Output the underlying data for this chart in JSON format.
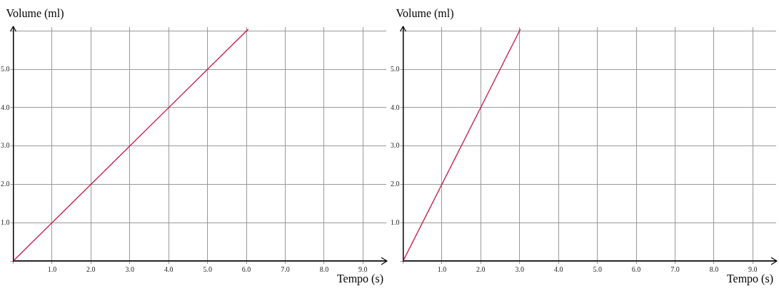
{
  "chart_data": [
    {
      "type": "line",
      "xlabel": "Tempo (s)",
      "ylabel": "Volume (ml)",
      "x": [
        0,
        6.05
      ],
      "series": [
        {
          "color": "#cc1144",
          "values": [
            0,
            6.05
          ]
        }
      ],
      "xlim": [
        0,
        9.6
      ],
      "ylim": [
        0,
        6.1
      ],
      "xticks": [
        {
          "value": 0,
          "label": null
        },
        {
          "value": 1,
          "label": "1.0"
        },
        {
          "value": 2,
          "label": "2.0"
        },
        {
          "value": 3,
          "label": "3.0"
        },
        {
          "value": 4,
          "label": "4.0"
        },
        {
          "value": 5,
          "label": "5.0"
        },
        {
          "value": 6,
          "label": "6.0"
        },
        {
          "value": 7,
          "label": "7.0"
        },
        {
          "value": 8,
          "label": "8.0"
        },
        {
          "value": 9,
          "label": "9.0"
        }
      ],
      "yticks": [
        {
          "value": 0,
          "label": null
        },
        {
          "value": 1,
          "label": "1.0"
        },
        {
          "value": 2,
          "label": "2.0"
        },
        {
          "value": 3,
          "label": "3.0"
        },
        {
          "value": 4,
          "label": "4.0"
        },
        {
          "value": 5,
          "label": "5.0"
        },
        {
          "value": 6,
          "label": null
        }
      ],
      "grid": true,
      "legend": false,
      "marker": "none",
      "line_style": "solid"
    },
    {
      "type": "line",
      "xlabel": "Tempo (s)",
      "ylabel": "Volume (ml)",
      "x": [
        0,
        3.02
      ],
      "series": [
        {
          "color": "#cc1144",
          "values": [
            0,
            6.05
          ]
        }
      ],
      "xlim": [
        0,
        9.6
      ],
      "ylim": [
        0,
        6.1
      ],
      "xticks": [
        {
          "value": 0,
          "label": null
        },
        {
          "value": 1,
          "label": "1.0"
        },
        {
          "value": 2,
          "label": "2.0"
        },
        {
          "value": 3,
          "label": "3.0"
        },
        {
          "value": 4,
          "label": "4.0"
        },
        {
          "value": 5,
          "label": "5.0"
        },
        {
          "value": 6,
          "label": "6.0"
        },
        {
          "value": 7,
          "label": "7.0"
        },
        {
          "value": 8,
          "label": "8.0"
        },
        {
          "value": 9,
          "label": "9.0"
        }
      ],
      "yticks": [
        {
          "value": 0,
          "label": null
        },
        {
          "value": 1,
          "label": "1.0"
        },
        {
          "value": 2,
          "label": "2.0"
        },
        {
          "value": 3,
          "label": "3.0"
        },
        {
          "value": 4,
          "label": "4.0"
        },
        {
          "value": 5,
          "label": "5.0"
        },
        {
          "value": 6,
          "label": null
        }
      ],
      "grid": true,
      "legend": false,
      "marker": "none",
      "line_style": "solid"
    }
  ]
}
